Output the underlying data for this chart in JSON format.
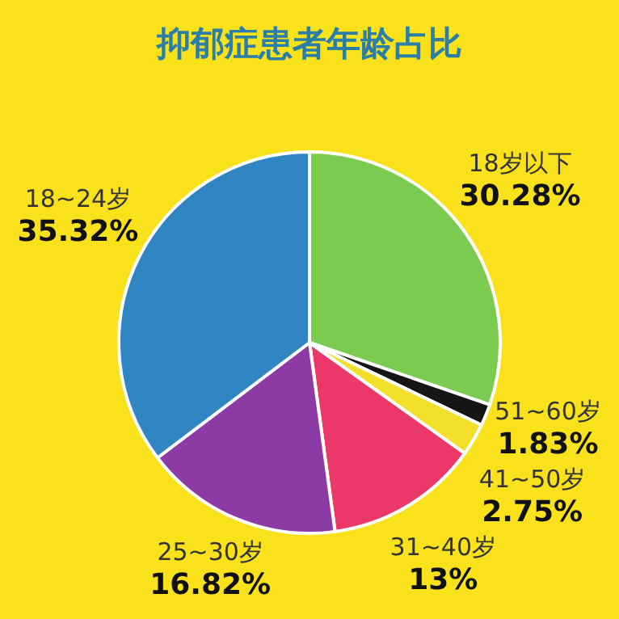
{
  "chart_data": {
    "type": "pie",
    "title": "抑郁症患者年龄占比",
    "categories": [
      "18岁以下",
      "51~60岁",
      "41~50岁",
      "31~40岁",
      "25~30岁",
      "18~24岁"
    ],
    "values": [
      30.28,
      1.83,
      2.75,
      13,
      16.82,
      35.32
    ],
    "value_labels": [
      "30.28%",
      "1.83%",
      "2.75%",
      "13%",
      "16.82%",
      "35.32%"
    ],
    "colors": [
      "#7acb50",
      "#151515",
      "#f2df2a",
      "#ec3868",
      "#8b3aa6",
      "#2f86c2"
    ]
  }
}
